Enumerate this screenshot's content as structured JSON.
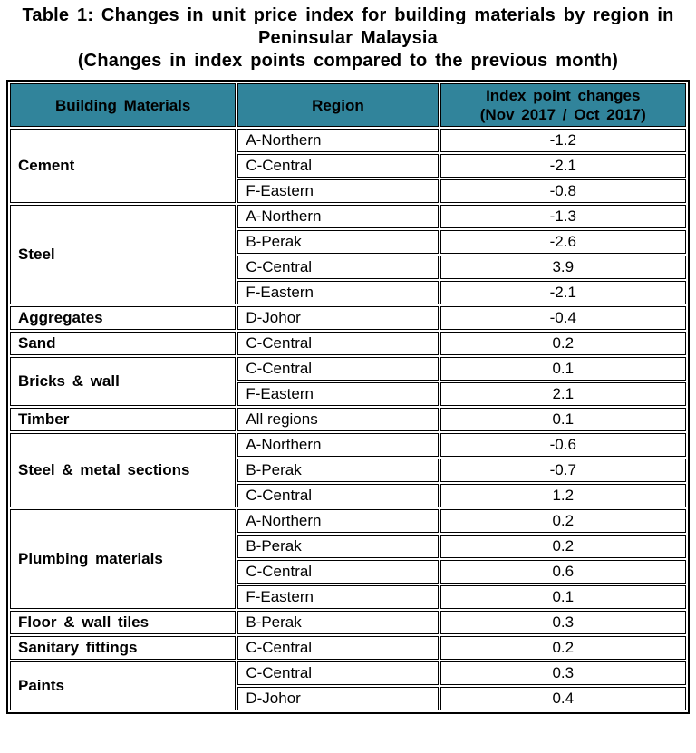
{
  "title": {
    "line1": "Table 1: Changes in unit price index for building materials by region in",
    "line2": "Peninsular Malaysia",
    "line3": "(Changes in index points compared to the previous month)"
  },
  "colors": {
    "header_bg": "#31849B",
    "border": "#000000",
    "text": "#000000"
  },
  "table": {
    "headers": {
      "materials": "Building Materials",
      "region": "Region",
      "index_line1": "Index point changes",
      "index_line2": "(Nov 2017 / Oct 2017)"
    },
    "groups": [
      {
        "material": "Cement",
        "rows": [
          {
            "region": "A-Northern",
            "value": "-1.2"
          },
          {
            "region": "C-Central",
            "value": "-2.1"
          },
          {
            "region": "F-Eastern",
            "value": "-0.8"
          }
        ]
      },
      {
        "material": "Steel",
        "rows": [
          {
            "region": "A-Northern",
            "value": "-1.3"
          },
          {
            "region": "B-Perak",
            "value": "-2.6"
          },
          {
            "region": "C-Central",
            "value": "3.9"
          },
          {
            "region": "F-Eastern",
            "value": "-2.1"
          }
        ]
      },
      {
        "material": "Aggregates",
        "rows": [
          {
            "region": "D-Johor",
            "value": "-0.4"
          }
        ]
      },
      {
        "material": "Sand",
        "rows": [
          {
            "region": "C-Central",
            "value": "0.2"
          }
        ]
      },
      {
        "material": "Bricks & wall",
        "rows": [
          {
            "region": "C-Central",
            "value": "0.1"
          },
          {
            "region": "F-Eastern",
            "value": "2.1"
          }
        ]
      },
      {
        "material": "Timber",
        "rows": [
          {
            "region": "All regions",
            "value": "0.1"
          }
        ]
      },
      {
        "material": "Steel & metal sections",
        "rows": [
          {
            "region": "A-Northern",
            "value": "-0.6"
          },
          {
            "region": "B-Perak",
            "value": "-0.7"
          },
          {
            "region": "C-Central",
            "value": "1.2"
          }
        ]
      },
      {
        "material": "Plumbing materials",
        "rows": [
          {
            "region": "A-Northern",
            "value": "0.2"
          },
          {
            "region": "B-Perak",
            "value": "0.2"
          },
          {
            "region": "C-Central",
            "value": "0.6"
          },
          {
            "region": "F-Eastern",
            "value": "0.1"
          }
        ]
      },
      {
        "material": "Floor & wall tiles",
        "rows": [
          {
            "region": "B-Perak",
            "value": "0.3"
          }
        ]
      },
      {
        "material": "Sanitary fittings",
        "rows": [
          {
            "region": "C-Central",
            "value": "0.2"
          }
        ]
      },
      {
        "material": "Paints",
        "rows": [
          {
            "region": "C-Central",
            "value": "0.3"
          },
          {
            "region": "D-Johor",
            "value": "0.4"
          }
        ]
      }
    ]
  }
}
